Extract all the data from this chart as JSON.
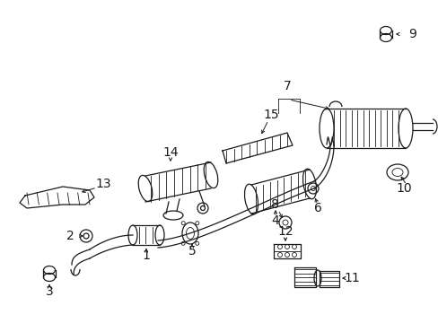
{
  "bg_color": "#ffffff",
  "line_color": "#1a1a1a",
  "fig_width": 4.89,
  "fig_height": 3.6,
  "dpi": 100,
  "label_fontsize": 10
}
